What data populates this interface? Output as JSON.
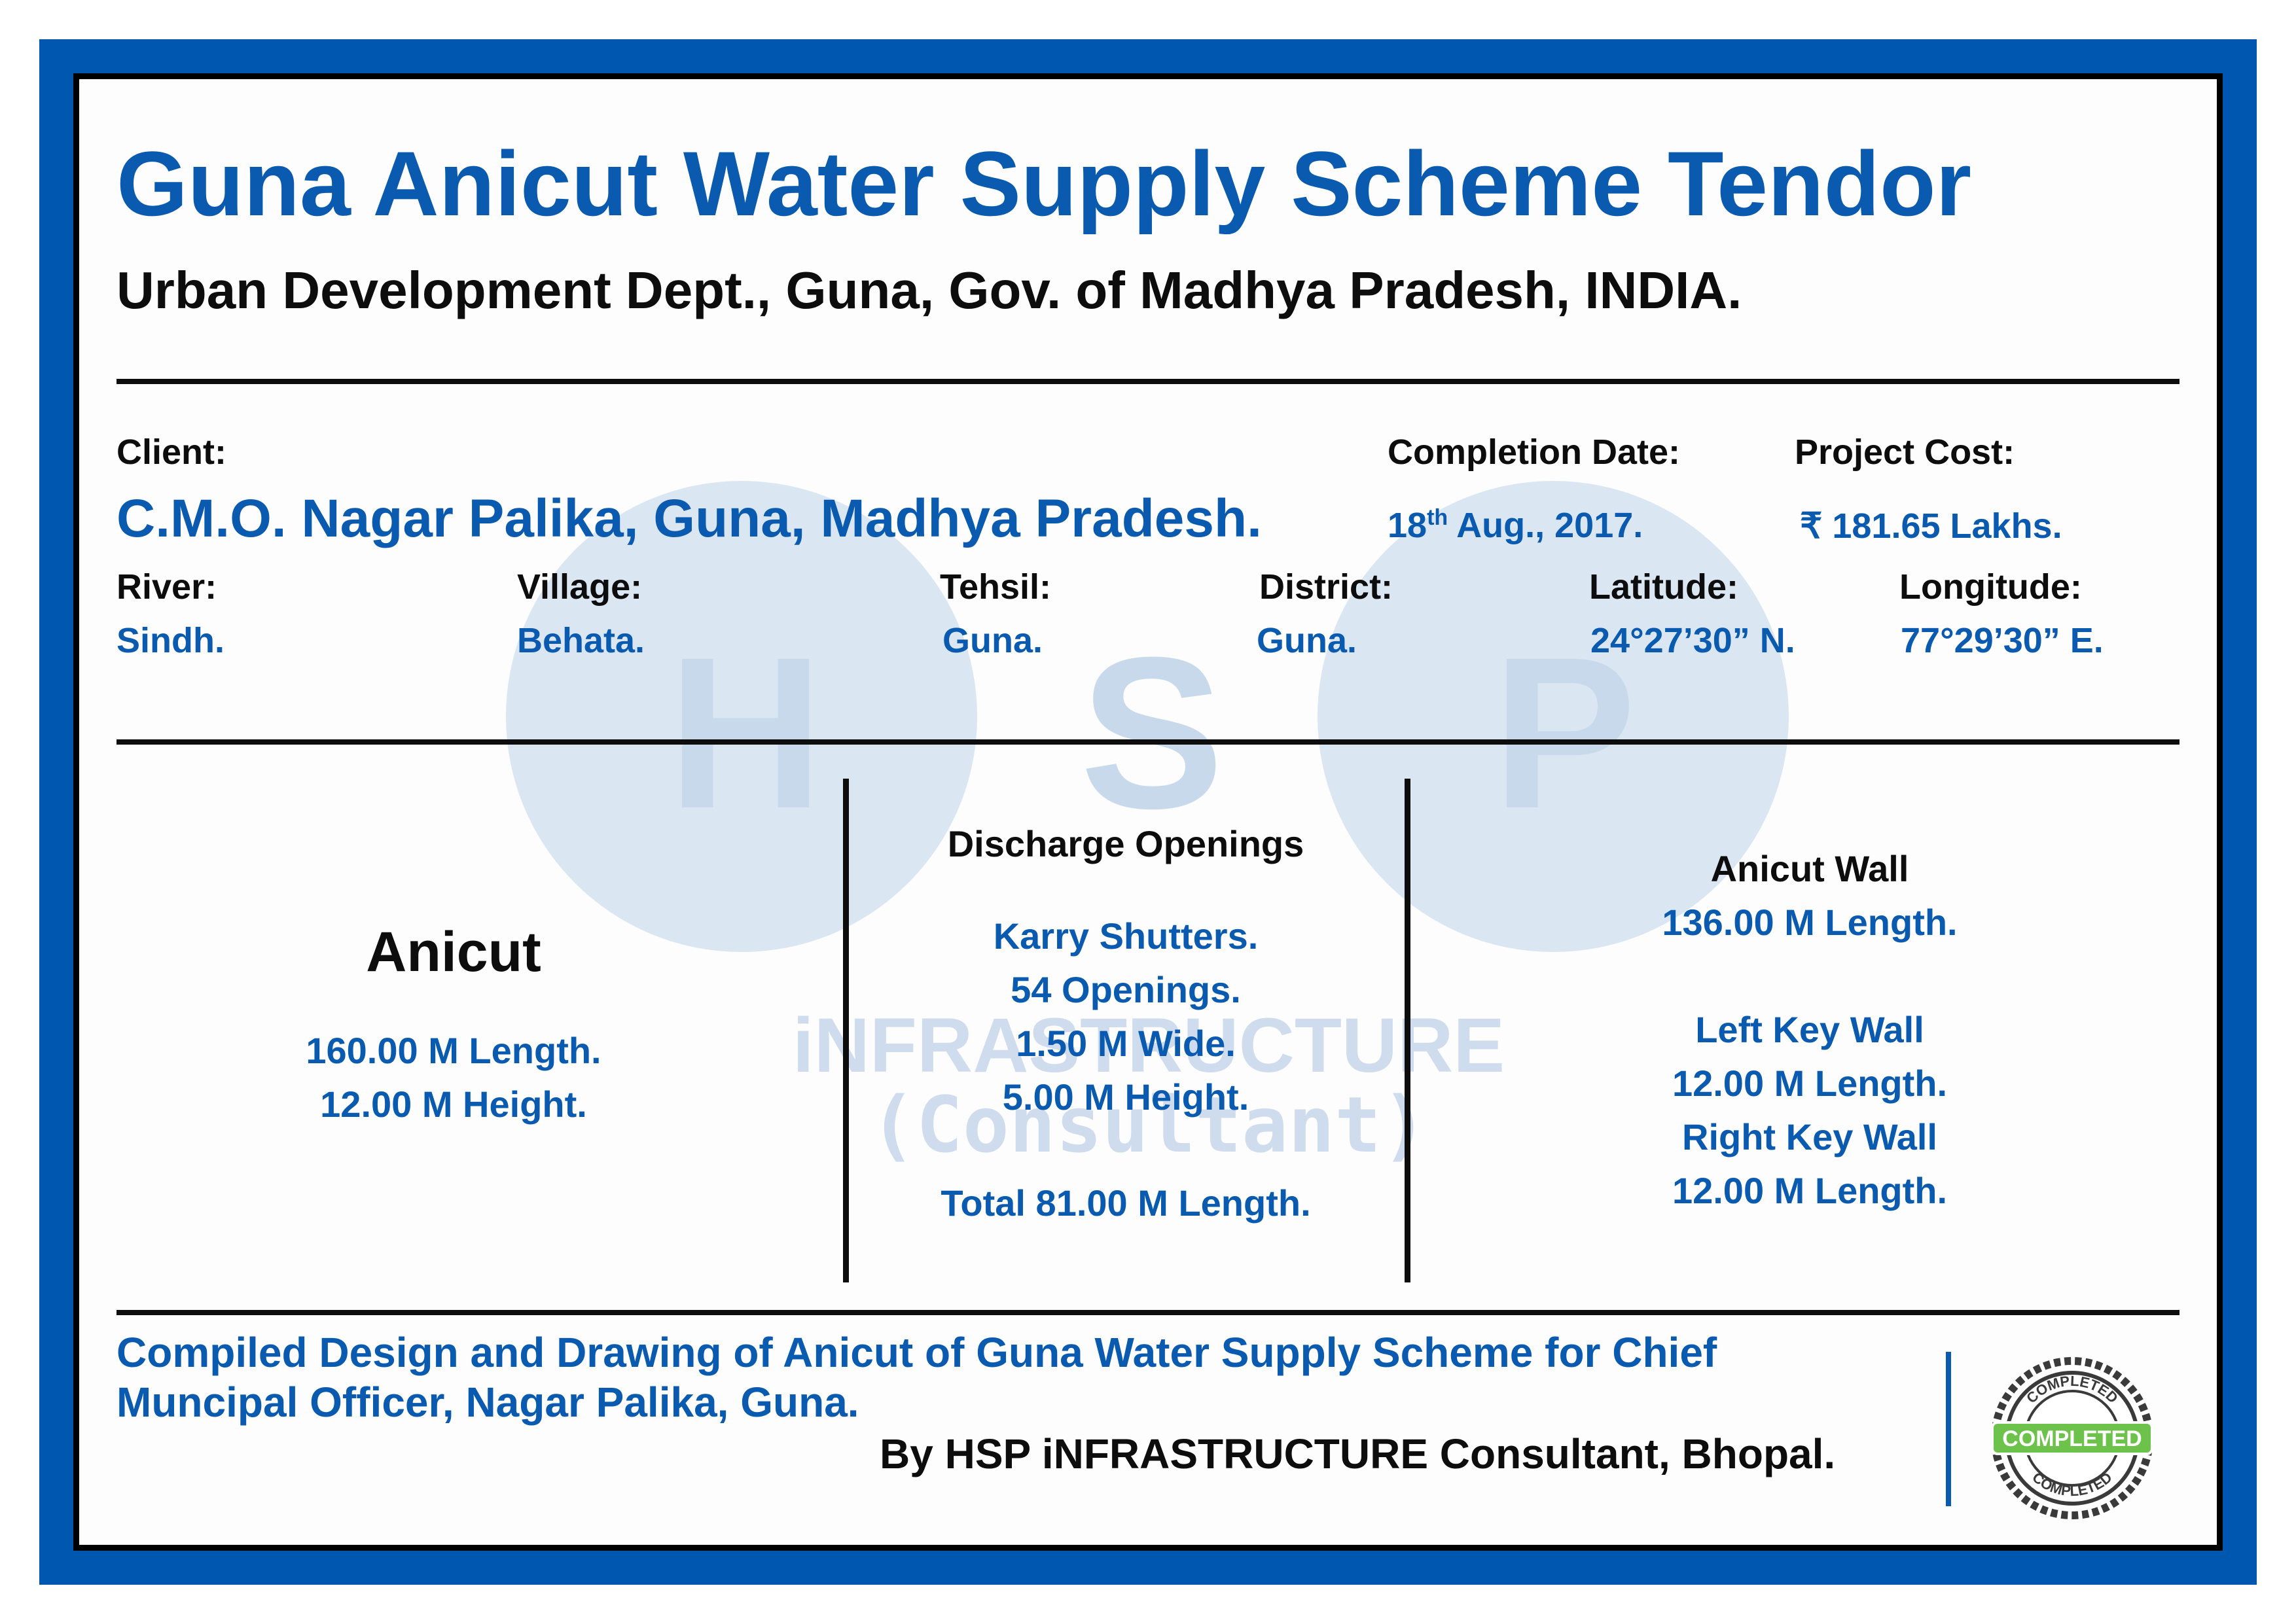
{
  "header": {
    "title": "Guna Anicut Water Supply Scheme Tendor",
    "subtitle": "Urban Development Dept., Guna, Gov. of Madhya Pradesh, INDIA."
  },
  "info": {
    "client_label": "Client:",
    "client_value": "C.M.O. Nagar Palika, Guna, Madhya Pradesh.",
    "completion_label": "Completion Date:",
    "completion_day": "18",
    "completion_suffix": "th",
    "completion_rest": " Aug., 2017.",
    "cost_label": "Project Cost:",
    "cost_value": "₹ 181.65 Lakhs.",
    "river_label": "River:",
    "river_value": "Sindh.",
    "village_label": "Village:",
    "village_value": "Behata.",
    "tehsil_label": "Tehsil:",
    "tehsil_value": "Guna.",
    "district_label": "District:",
    "district_value": "Guna.",
    "latitude_label": "Latitude:",
    "latitude_value": "24°27’30” N.",
    "longitude_label": "Longitude:",
    "longitude_value": "77°29’30” E."
  },
  "watermark": {
    "letters": [
      "H",
      "S",
      "P"
    ],
    "line1": "iNFRASTRUCTURE",
    "line2": "(Consultant)"
  },
  "sections": {
    "anicut": {
      "heading": "Anicut",
      "lines": [
        "160.00 M Length.",
        "12.00 M Height."
      ]
    },
    "discharge": {
      "heading": "Discharge Openings",
      "lines": [
        "Karry Shutters.",
        "54 Openings.",
        "1.50 M Wide.",
        "5.00 M Height."
      ],
      "total": "Total 81.00 M Length."
    },
    "anicut_wall": {
      "heading": "Anicut Wall",
      "length": "136.00 M Length.",
      "left_heading": "Left Key Wall",
      "left_length": "12.00 M Length.",
      "right_heading": "Right Key Wall",
      "right_length": "12.00 M Length."
    }
  },
  "footer": {
    "line1": "Compiled Design and Drawing of Anicut of Guna Water Supply Scheme for Chief",
    "line2": "Muncipal Officer, Nagar Palika, Guna.",
    "byline": "By HSP iNFRASTRUCTURE Consultant, Bhopal."
  },
  "seal": {
    "ring_text": "COMPLETED",
    "banner_text": "COMPLETED",
    "banner_color": "#6cc24a",
    "ring_color": "#3a3a3a"
  },
  "colors": {
    "frame": "#0057b0",
    "accent_text": "#0a5bb0",
    "watermark": "#dbe6f3"
  }
}
